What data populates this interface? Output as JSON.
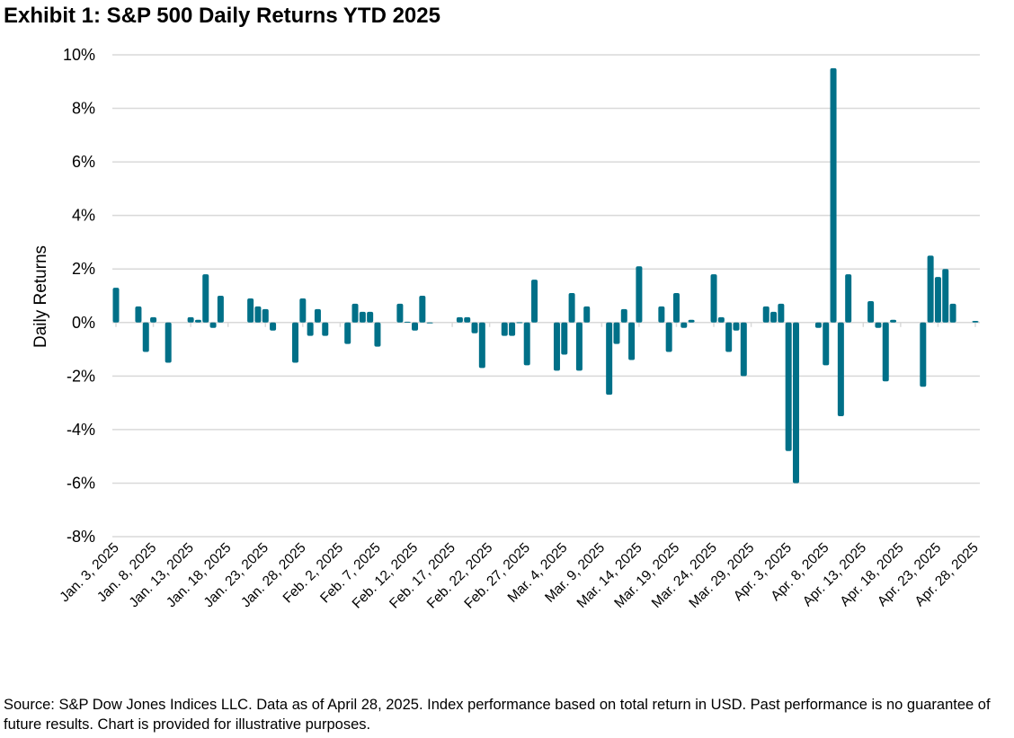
{
  "title": "Exhibit 1: S&P 500 Daily Returns YTD 2025",
  "footer": "Source: S&P Dow Jones Indices LLC. Data as of April 28, 2025. Index performance based on total return in USD. Past performance is no guarantee of future results. Chart is provided for illustrative purposes.",
  "colors": {
    "bar": "#007088",
    "grid": "#d9d9d9"
  },
  "chart_data": {
    "type": "bar",
    "title": "Exhibit 1: S&P 500 Daily Returns YTD 2025",
    "xlabel": "",
    "ylabel": "Daily Returns",
    "ylim": [
      -8,
      10
    ],
    "yticks": [
      -8,
      -6,
      -4,
      -2,
      0,
      2,
      4,
      6,
      8,
      10
    ],
    "ytick_labels": [
      "-8%",
      "-6%",
      "-4%",
      "-2%",
      "0%",
      "2%",
      "4%",
      "6%",
      "8%",
      "10%"
    ],
    "x_start": "2025-01-03",
    "x_end": "2025-04-28",
    "xtick_labels": [
      "Jan. 3, 2025",
      "Jan. 8, 2025",
      "Jan. 13, 2025",
      "Jan. 18, 2025",
      "Jan. 23, 2025",
      "Jan. 28, 2025",
      "Feb. 2, 2025",
      "Feb. 7, 2025",
      "Feb. 12, 2025",
      "Feb. 17, 2025",
      "Feb. 22, 2025",
      "Feb. 27, 2025",
      "Mar. 4, 2025",
      "Mar. 9, 2025",
      "Mar. 14, 2025",
      "Mar. 19, 2025",
      "Mar. 24, 2025",
      "Mar. 29, 2025",
      "Apr. 3, 2025",
      "Apr. 8, 2025",
      "Apr. 13, 2025",
      "Apr. 18, 2025",
      "Apr. 23, 2025",
      "Apr. 28, 2025"
    ],
    "grid": true,
    "legend": "none",
    "series": [
      {
        "name": "S&P 500 Daily Return (%)",
        "points": [
          {
            "date": "2025-01-03",
            "value": 1.3
          },
          {
            "date": "2025-01-06",
            "value": 0.6
          },
          {
            "date": "2025-01-07",
            "value": -1.1
          },
          {
            "date": "2025-01-08",
            "value": 0.2
          },
          {
            "date": "2025-01-10",
            "value": -1.5
          },
          {
            "date": "2025-01-13",
            "value": 0.2
          },
          {
            "date": "2025-01-14",
            "value": 0.1
          },
          {
            "date": "2025-01-15",
            "value": 1.8
          },
          {
            "date": "2025-01-16",
            "value": -0.2
          },
          {
            "date": "2025-01-17",
            "value": 1.0
          },
          {
            "date": "2025-01-21",
            "value": 0.9
          },
          {
            "date": "2025-01-22",
            "value": 0.6
          },
          {
            "date": "2025-01-23",
            "value": 0.5
          },
          {
            "date": "2025-01-24",
            "value": -0.3
          },
          {
            "date": "2025-01-27",
            "value": -1.5
          },
          {
            "date": "2025-01-28",
            "value": 0.9
          },
          {
            "date": "2025-01-29",
            "value": -0.5
          },
          {
            "date": "2025-01-30",
            "value": 0.5
          },
          {
            "date": "2025-01-31",
            "value": -0.5
          },
          {
            "date": "2025-02-03",
            "value": -0.8
          },
          {
            "date": "2025-02-04",
            "value": 0.7
          },
          {
            "date": "2025-02-05",
            "value": 0.4
          },
          {
            "date": "2025-02-06",
            "value": 0.4
          },
          {
            "date": "2025-02-07",
            "value": -0.9
          },
          {
            "date": "2025-02-10",
            "value": 0.7
          },
          {
            "date": "2025-02-11",
            "value": 0.03
          },
          {
            "date": "2025-02-12",
            "value": -0.3
          },
          {
            "date": "2025-02-13",
            "value": 1.0
          },
          {
            "date": "2025-02-14",
            "value": 0.0
          },
          {
            "date": "2025-02-18",
            "value": 0.2
          },
          {
            "date": "2025-02-19",
            "value": 0.2
          },
          {
            "date": "2025-02-20",
            "value": -0.4
          },
          {
            "date": "2025-02-21",
            "value": -1.7
          },
          {
            "date": "2025-02-24",
            "value": -0.5
          },
          {
            "date": "2025-02-25",
            "value": -0.5
          },
          {
            "date": "2025-02-26",
            "value": 0.01
          },
          {
            "date": "2025-02-27",
            "value": -1.6
          },
          {
            "date": "2025-02-28",
            "value": 1.6
          },
          {
            "date": "2025-03-03",
            "value": -1.8
          },
          {
            "date": "2025-03-04",
            "value": -1.2
          },
          {
            "date": "2025-03-05",
            "value": 1.1
          },
          {
            "date": "2025-03-06",
            "value": -1.8
          },
          {
            "date": "2025-03-07",
            "value": 0.6
          },
          {
            "date": "2025-03-10",
            "value": -2.7
          },
          {
            "date": "2025-03-11",
            "value": -0.8
          },
          {
            "date": "2025-03-12",
            "value": 0.5
          },
          {
            "date": "2025-03-13",
            "value": -1.4
          },
          {
            "date": "2025-03-14",
            "value": 2.1
          },
          {
            "date": "2025-03-17",
            "value": 0.6
          },
          {
            "date": "2025-03-18",
            "value": -1.1
          },
          {
            "date": "2025-03-19",
            "value": 1.1
          },
          {
            "date": "2025-03-20",
            "value": -0.2
          },
          {
            "date": "2025-03-21",
            "value": 0.1
          },
          {
            "date": "2025-03-24",
            "value": 1.8
          },
          {
            "date": "2025-03-25",
            "value": 0.2
          },
          {
            "date": "2025-03-26",
            "value": -1.1
          },
          {
            "date": "2025-03-27",
            "value": -0.3
          },
          {
            "date": "2025-03-28",
            "value": -2.0
          },
          {
            "date": "2025-03-31",
            "value": 0.6
          },
          {
            "date": "2025-04-01",
            "value": 0.4
          },
          {
            "date": "2025-04-02",
            "value": 0.7
          },
          {
            "date": "2025-04-03",
            "value": -4.8
          },
          {
            "date": "2025-04-04",
            "value": -6.0
          },
          {
            "date": "2025-04-07",
            "value": -0.2
          },
          {
            "date": "2025-04-08",
            "value": -1.6
          },
          {
            "date": "2025-04-09",
            "value": 9.5
          },
          {
            "date": "2025-04-10",
            "value": -3.5
          },
          {
            "date": "2025-04-11",
            "value": 1.8
          },
          {
            "date": "2025-04-14",
            "value": 0.8
          },
          {
            "date": "2025-04-15",
            "value": -0.2
          },
          {
            "date": "2025-04-16",
            "value": -2.2
          },
          {
            "date": "2025-04-17",
            "value": 0.1
          },
          {
            "date": "2025-04-21",
            "value": -2.4
          },
          {
            "date": "2025-04-22",
            "value": 2.5
          },
          {
            "date": "2025-04-23",
            "value": 1.7
          },
          {
            "date": "2025-04-24",
            "value": 2.0
          },
          {
            "date": "2025-04-25",
            "value": 0.7
          },
          {
            "date": "2025-04-28",
            "value": 0.06
          }
        ]
      }
    ]
  }
}
